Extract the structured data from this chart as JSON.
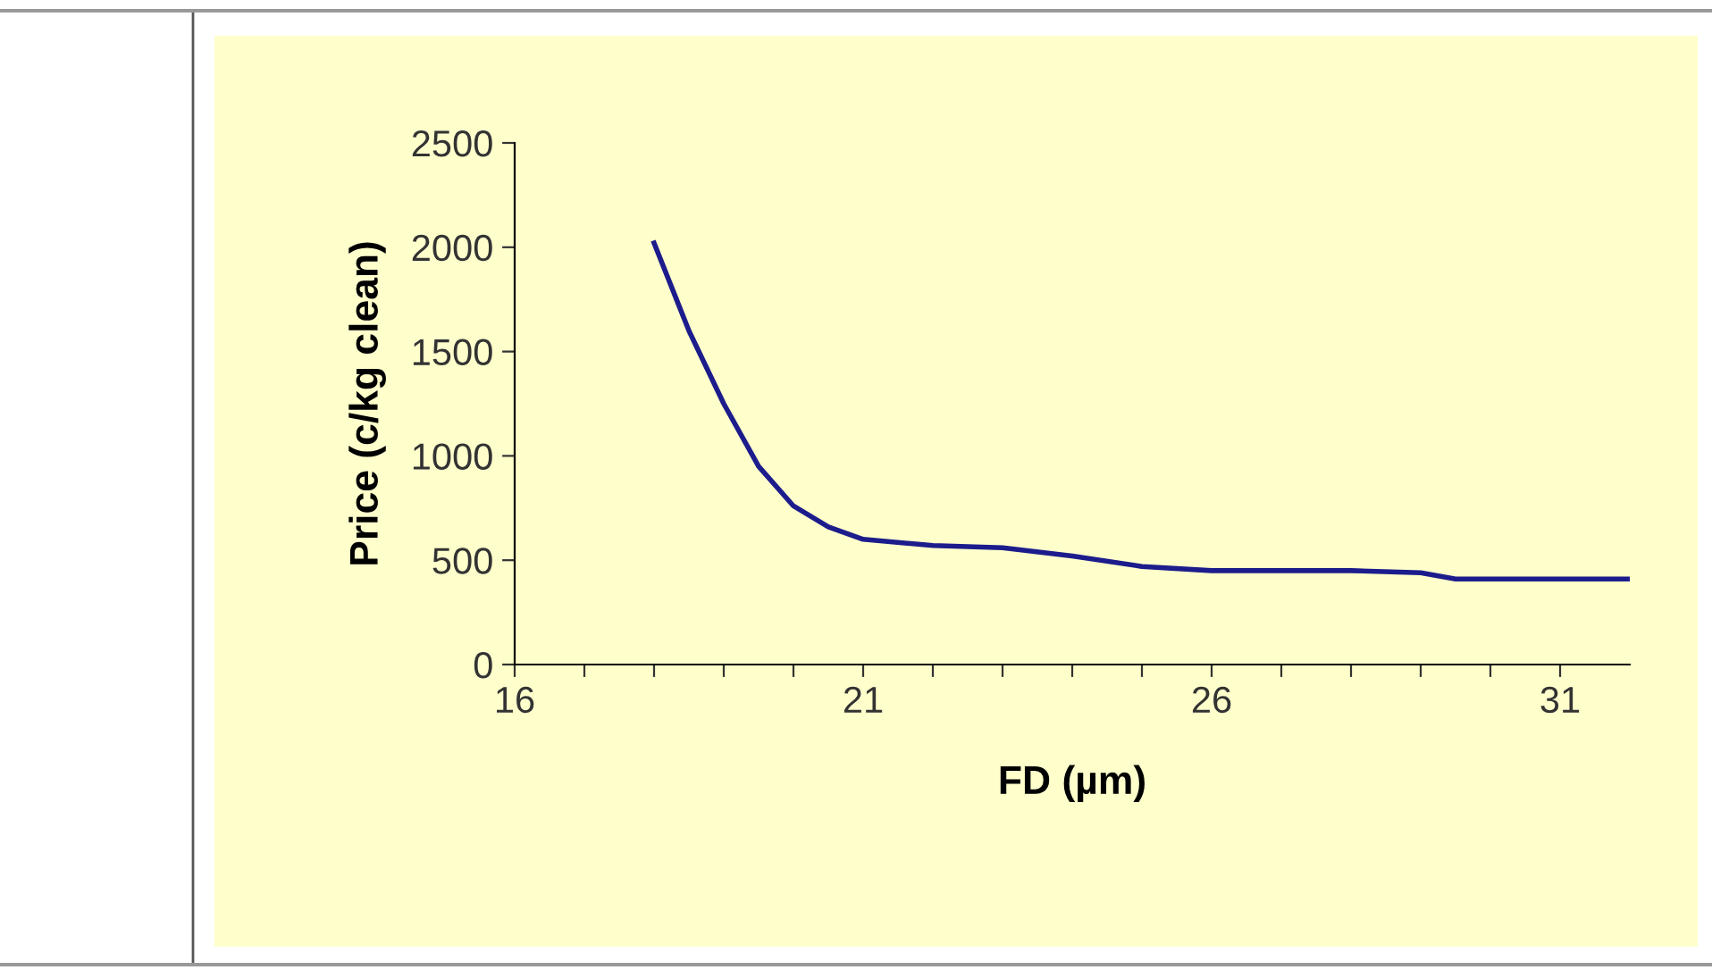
{
  "chart_data": {
    "type": "line",
    "xlabel": "FD (µm)",
    "ylabel": "Price (c/kg clean)",
    "x": [
      18,
      18.5,
      19,
      19.5,
      20,
      20.5,
      21,
      22,
      23,
      24,
      25,
      26,
      27,
      28,
      29,
      29.5,
      30,
      31,
      32
    ],
    "series": [
      {
        "color": "#1c1c8c",
        "values": [
          2020,
          1600,
          1250,
          950,
          760,
          660,
          600,
          570,
          560,
          520,
          470,
          450,
          450,
          450,
          440,
          410,
          410,
          410,
          410
        ]
      }
    ],
    "xlim": [
      16,
      32
    ],
    "ylim": [
      0,
      2500
    ],
    "xticks": [
      16,
      {
        "value": 17,
        "label": null
      },
      {
        "value": 18,
        "label": null
      },
      {
        "value": 19,
        "label": null
      },
      {
        "value": 20,
        "label": null
      },
      21,
      {
        "value": 22,
        "label": null
      },
      {
        "value": 23,
        "label": null
      },
      {
        "value": 24,
        "label": null
      },
      {
        "value": 25,
        "label": null
      },
      26,
      {
        "value": 27,
        "label": null
      },
      {
        "value": 28,
        "label": null
      },
      {
        "value": 29,
        "label": null
      },
      {
        "value": 30,
        "label": null
      },
      31
    ],
    "yticks": [
      0,
      500,
      1000,
      1500,
      2000,
      2500
    ],
    "grid": false,
    "legend": false,
    "marker": "none",
    "line_style": "solid"
  }
}
